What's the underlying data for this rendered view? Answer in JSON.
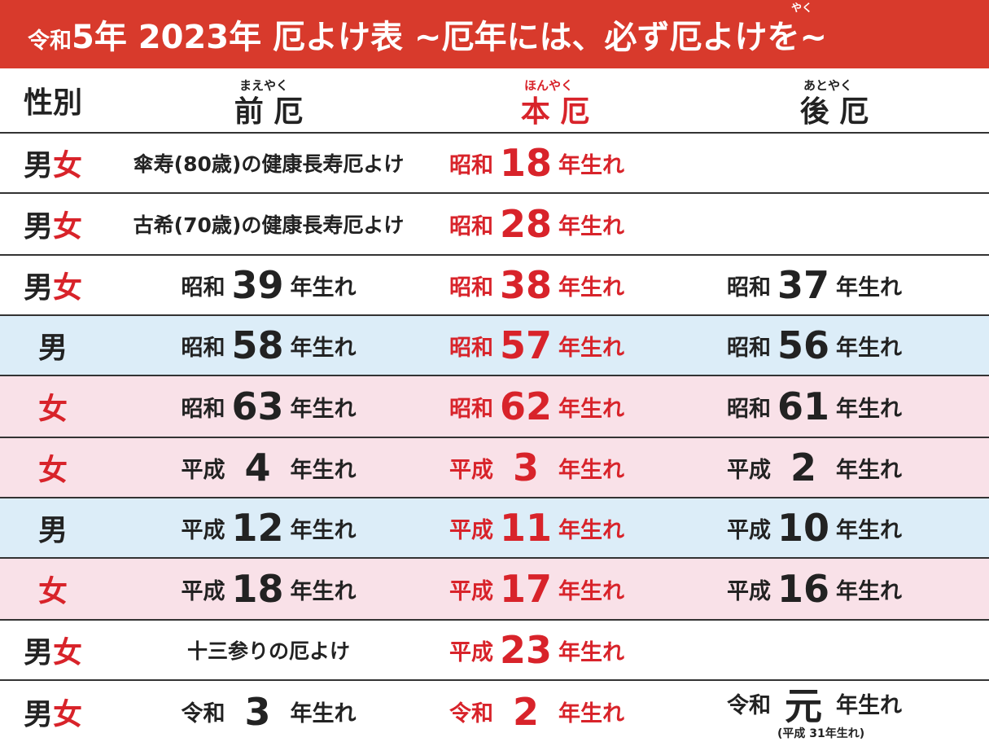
{
  "title": {
    "era_prefix": "令和",
    "main_text": "5年 2023年 厄よけ表 ~厄年には、必ず厄よけを~",
    "ruby_yaku": "やく"
  },
  "header": {
    "gender": "性別",
    "mae": "前 厄",
    "mae_ruby": "まえやく",
    "hon": "本 厄",
    "hon_ruby": "ほんやく",
    "ato": "後 厄",
    "ato_ruby": "あとやく"
  },
  "rows": [
    {
      "g1": "男",
      "g2": "女",
      "mae_note": "傘寿(80歳)の健康長寿厄よけ",
      "hon_era": "昭和",
      "hon_num": "18",
      "hon_suf": "年生れ"
    },
    {
      "g1": "男",
      "g2": "女",
      "mae_note": "古希(70歳)の健康長寿厄よけ",
      "hon_era": "昭和",
      "hon_num": "28",
      "hon_suf": "年生れ"
    },
    {
      "g1": "男",
      "g2": "女",
      "mae_era": "昭和",
      "mae_num": "39",
      "mae_suf": "年生れ",
      "hon_era": "昭和",
      "hon_num": "38",
      "hon_suf": "年生れ",
      "ato_era": "昭和",
      "ato_num": "37",
      "ato_suf": "年生れ"
    },
    {
      "g1": "男",
      "mae_era": "昭和",
      "mae_num": "58",
      "mae_suf": "年生れ",
      "hon_era": "昭和",
      "hon_num": "57",
      "hon_suf": "年生れ",
      "ato_era": "昭和",
      "ato_num": "56",
      "ato_suf": "年生れ"
    },
    {
      "g2": "女",
      "mae_era": "昭和",
      "mae_num": "63",
      "mae_suf": "年生れ",
      "hon_era": "昭和",
      "hon_num": "62",
      "hon_suf": "年生れ",
      "ato_era": "昭和",
      "ato_num": "61",
      "ato_suf": "年生れ"
    },
    {
      "g2": "女",
      "mae_era": "平成",
      "mae_num": "4",
      "mae_suf": "年生れ",
      "hon_era": "平成",
      "hon_num": "3",
      "hon_suf": "年生れ",
      "ato_era": "平成",
      "ato_num": "2",
      "ato_suf": "年生れ"
    },
    {
      "g1": "男",
      "mae_era": "平成",
      "mae_num": "12",
      "mae_suf": "年生れ",
      "hon_era": "平成",
      "hon_num": "11",
      "hon_suf": "年生れ",
      "ato_era": "平成",
      "ato_num": "10",
      "ato_suf": "年生れ"
    },
    {
      "g2": "女",
      "mae_era": "平成",
      "mae_num": "18",
      "mae_suf": "年生れ",
      "hon_era": "平成",
      "hon_num": "17",
      "hon_suf": "年生れ",
      "ato_era": "平成",
      "ato_num": "16",
      "ato_suf": "年生れ"
    },
    {
      "g1": "男",
      "g2": "女",
      "mae_note": "十三参りの厄よけ",
      "hon_era": "平成",
      "hon_num": "23",
      "hon_suf": "年生れ"
    },
    {
      "g1": "男",
      "g2": "女",
      "mae_era": "令和",
      "mae_num": "3",
      "mae_suf": "年生れ",
      "hon_era": "令和",
      "hon_num": "2",
      "hon_suf": "年生れ",
      "ato_era": "令和",
      "ato_num": "元",
      "ato_suf": "年生れ",
      "ato_subnote": "(平成 31年生れ)"
    }
  ],
  "colors": {
    "title_bg": "#d83a2c",
    "red_text": "#d8232a",
    "male_row_bg": "#dcedf8",
    "female_row_bg": "#f9e1e8"
  }
}
